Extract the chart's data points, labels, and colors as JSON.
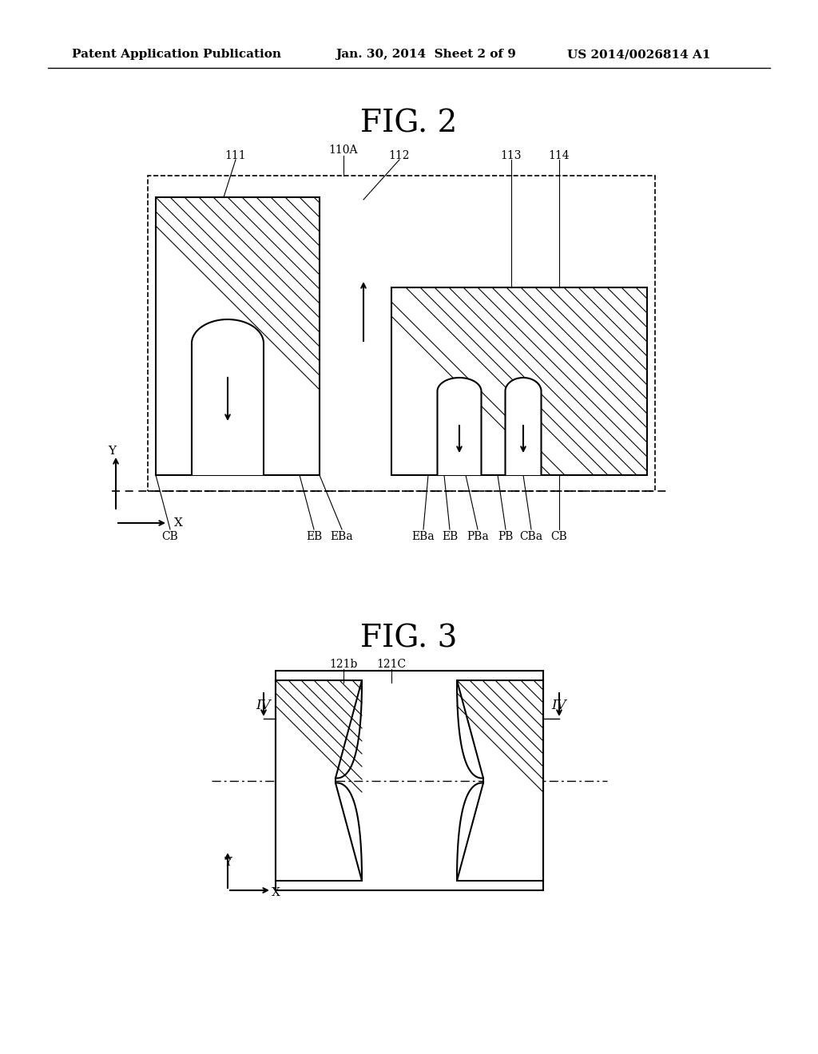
{
  "header_left": "Patent Application Publication",
  "header_mid": "Jan. 30, 2014  Sheet 2 of 9",
  "header_right": "US 2014/0026814 A1",
  "fig2_title": "FIG. 2",
  "fig3_title": "FIG. 3",
  "bg_color": "#ffffff"
}
